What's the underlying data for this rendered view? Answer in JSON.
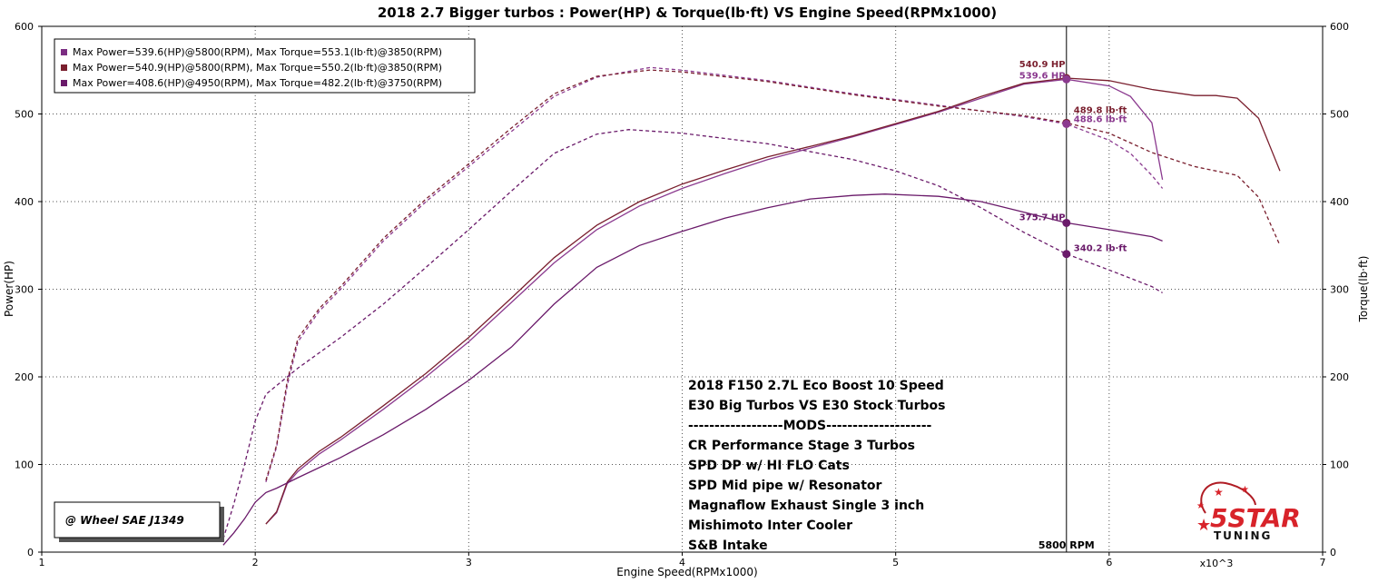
{
  "chart_data": {
    "type": "line",
    "title": "2018 2.7 Bigger turbos : Power(HP) & Torque(lb·ft) VS Engine Speed(RPMx1000)",
    "xlabel": "Engine Speed(RPMx1000)",
    "ylabel": "Power(HP)",
    "y2label": "Torque(lb·ft)",
    "xlim": [
      1,
      7
    ],
    "ylim": [
      0,
      600
    ],
    "y2lim": [
      0,
      600
    ],
    "x_ticks": [
      "1",
      "2",
      "3",
      "4",
      "5",
      "6",
      "7"
    ],
    "x_ticks_values": [
      1,
      2,
      3,
      4,
      5,
      6,
      7
    ],
    "y_ticks": [
      "0",
      "100",
      "200",
      "300",
      "400",
      "500",
      "600"
    ],
    "y_ticks_values": [
      0,
      100,
      200,
      300,
      400,
      500,
      600
    ],
    "x_multiplier": "x10^3",
    "grid": true,
    "legend_position": "top-left",
    "legend": [
      {
        "text": "Max Power=539.6(HP)@5800(RPM), Max Torque=553.1(lb·ft)@3850(RPM)",
        "color": "#7b2d82"
      },
      {
        "text": "Max Power=540.9(HP)@5800(RPM), Max Torque=550.2(lb·ft)@3850(RPM)",
        "color": "#7a1f2e"
      },
      {
        "text": "Max Power=408.6(HP)@4950(RPM), Max Torque=482.2(lb·ft)@3750(RPM)",
        "color": "#6a1a6a"
      }
    ],
    "series": [
      {
        "kind": "power",
        "color": "#8b3a8f",
        "dash": false,
        "x": [
          2.05,
          2.1,
          2.15,
          2.2,
          2.3,
          2.4,
          2.6,
          2.8,
          3.0,
          3.2,
          3.4,
          3.6,
          3.8,
          4.0,
          4.2,
          4.4,
          4.6,
          4.8,
          5.0,
          5.2,
          5.4,
          5.6,
          5.8,
          6.0,
          6.1,
          6.2,
          6.25
        ],
        "y": [
          32,
          45,
          78,
          92,
          112,
          128,
          163,
          200,
          240,
          285,
          330,
          368,
          395,
          415,
          432,
          448,
          461,
          474,
          488,
          502,
          518,
          534,
          539.6,
          532,
          520,
          490,
          425
        ]
      },
      {
        "kind": "power",
        "color": "#7a1f2e",
        "dash": false,
        "x": [
          2.05,
          2.1,
          2.15,
          2.2,
          2.3,
          2.4,
          2.6,
          2.8,
          3.0,
          3.2,
          3.4,
          3.6,
          3.8,
          4.0,
          4.2,
          4.4,
          4.6,
          4.8,
          5.0,
          5.2,
          5.4,
          5.6,
          5.8,
          6.0,
          6.2,
          6.4,
          6.5,
          6.6,
          6.7,
          6.8
        ],
        "y": [
          32,
          46,
          80,
          95,
          115,
          131,
          167,
          204,
          245,
          290,
          336,
          373,
          400,
          420,
          436,
          451,
          463,
          475,
          489,
          503,
          520,
          535,
          540.9,
          538,
          528,
          521,
          521,
          518,
          495,
          435
        ]
      },
      {
        "kind": "power",
        "color": "#6a1a6a",
        "dash": false,
        "x": [
          1.85,
          1.9,
          1.95,
          2.0,
          2.05,
          2.1,
          2.2,
          2.4,
          2.6,
          2.8,
          3.0,
          3.2,
          3.4,
          3.6,
          3.8,
          4.0,
          4.2,
          4.4,
          4.6,
          4.8,
          4.95,
          5.2,
          5.4,
          5.6,
          5.8,
          6.0,
          6.2,
          6.25
        ],
        "y": [
          8,
          22,
          38,
          57,
          68,
          73,
          85,
          108,
          134,
          163,
          196,
          234,
          283,
          325,
          350,
          366,
          381,
          393,
          403,
          407,
          408.6,
          406,
          400,
          388,
          375.7,
          368,
          360,
          355
        ]
      },
      {
        "kind": "torque",
        "color": "#8b3a8f",
        "dash": true,
        "x": [
          2.05,
          2.1,
          2.15,
          2.2,
          2.3,
          2.4,
          2.6,
          2.8,
          3.0,
          3.2,
          3.4,
          3.6,
          3.85,
          4.0,
          4.4,
          4.8,
          5.2,
          5.6,
          5.8,
          6.0,
          6.1,
          6.2,
          6.25
        ],
        "y": [
          80,
          120,
          190,
          240,
          275,
          300,
          355,
          400,
          440,
          480,
          520,
          542,
          553.1,
          550,
          538,
          523,
          510,
          497,
          488.6,
          470,
          455,
          430,
          415
        ]
      },
      {
        "kind": "torque",
        "color": "#7a1f2e",
        "dash": true,
        "x": [
          2.05,
          2.1,
          2.15,
          2.2,
          2.3,
          2.4,
          2.6,
          2.8,
          3.0,
          3.2,
          3.4,
          3.6,
          3.85,
          4.0,
          4.4,
          4.8,
          5.2,
          5.6,
          5.8,
          6.0,
          6.2,
          6.4,
          6.6,
          6.7,
          6.8
        ],
        "y": [
          82,
          122,
          195,
          244,
          278,
          303,
          358,
          403,
          443,
          484,
          523,
          543,
          550.2,
          548,
          537,
          522,
          509,
          498,
          489.8,
          478,
          456,
          440,
          430,
          405,
          350
        ]
      },
      {
        "kind": "torque",
        "color": "#6a1a6a",
        "dash": true,
        "x": [
          1.85,
          1.9,
          1.95,
          2.0,
          2.05,
          2.1,
          2.2,
          2.4,
          2.6,
          2.8,
          3.0,
          3.2,
          3.4,
          3.6,
          3.75,
          4.0,
          4.4,
          4.8,
          5.0,
          5.2,
          5.4,
          5.6,
          5.8,
          6.0,
          6.2,
          6.25
        ],
        "y": [
          15,
          55,
          100,
          150,
          180,
          190,
          210,
          245,
          283,
          325,
          368,
          412,
          455,
          477,
          482.2,
          478,
          466,
          448,
          435,
          418,
          393,
          365,
          340.2,
          322,
          303,
          296
        ]
      }
    ],
    "cursor": {
      "x": 5.8,
      "label": "5800 RPM"
    },
    "markers": [
      {
        "x": 5.8,
        "y": 540.9,
        "color": "#7a1f2e",
        "label": "540.9 HP",
        "label_color": "#7a1f2e",
        "dx": -52,
        "dy": -12
      },
      {
        "x": 5.8,
        "y": 539.6,
        "color": "#8b3a8f",
        "label": "539.6 HP",
        "label_color": "#8b3a8f",
        "dx": -52,
        "dy": -1
      },
      {
        "x": 5.8,
        "y": 489.8,
        "color": "#7a1f2e",
        "label": "489.8 lb·ft",
        "label_color": "#7a1f2e",
        "dx": 8,
        "dy": -11
      },
      {
        "x": 5.8,
        "y": 488.6,
        "color": "#8b3a8f",
        "label": "488.6 lb·ft",
        "label_color": "#8b3a8f",
        "dx": 8,
        "dy": -2
      },
      {
        "x": 5.8,
        "y": 375.7,
        "color": "#6a1a6a",
        "label": "375.7 HP",
        "label_color": "#6a1a6a",
        "dx": -52,
        "dy": -3
      },
      {
        "x": 5.8,
        "y": 340.2,
        "color": "#6a1a6a",
        "label": "340.2 lb·ft",
        "label_color": "#6a1a6a",
        "dx": 8,
        "dy": -3
      }
    ],
    "annotations": [
      "2018 F150 2.7L Eco Boost  10 Speed",
      "E30 Big Turbos VS E30 Stock Turbos",
      "------------------MODS--------------------",
      "CR Performance Stage 3 Turbos",
      "SPD DP w/ HI FLO Cats",
      "SPD Mid pipe w/ Resonator",
      "Magnaflow Exhaust Single 3 inch",
      "Mishimoto Inter Cooler",
      "S&B Intake"
    ],
    "badge": "@ Wheel SAE J1349"
  },
  "logo": {
    "big": "5STAR",
    "small": "TUNING"
  }
}
